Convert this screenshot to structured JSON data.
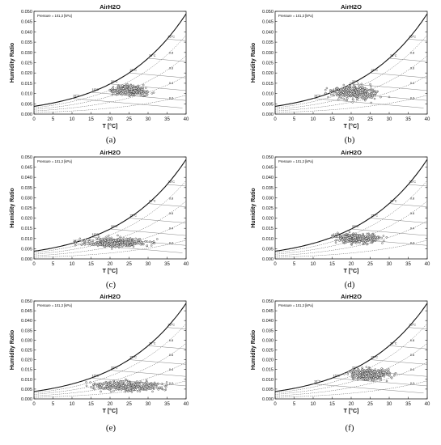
{
  "chart_data": [
    {
      "panel_label": "(a)",
      "type": "scatter",
      "title": "AirH2O",
      "xlabel": "T [°C]",
      "ylabel": "Humidity Ratio",
      "pressure_label": "Pressure = 101,3 [kPa]",
      "xlim": [
        0,
        40
      ],
      "ylim": [
        0,
        0.05
      ],
      "x_ticks": [
        "0",
        "5",
        "10",
        "15",
        "20",
        "25",
        "30",
        "35",
        "40"
      ],
      "y_ticks": [
        "0.000",
        "0.005",
        "0.010",
        "0.015",
        "0.020",
        "0.025",
        "0.030",
        "0.035",
        "0.040",
        "0.045",
        "0.050"
      ],
      "rh_labels": [
        "0.2",
        "0.4",
        "0.6",
        "0.8"
      ],
      "wetbulb_labels": [
        "10°C",
        "15°C",
        "20°C",
        "25°C",
        "30°C",
        "35°C"
      ],
      "cloud": {
        "x_range": [
          18,
          32
        ],
        "w_range": [
          0.008,
          0.015
        ],
        "mean_x": 25,
        "mean_w": 0.0115
      },
      "grid": false
    },
    {
      "panel_label": "(b)",
      "type": "scatter",
      "title": "AirH2O",
      "xlabel": "T [°C]",
      "ylabel": "Humidity Ratio",
      "pressure_label": "Pressure = 101,3 [kPa]",
      "xlim": [
        0,
        40
      ],
      "ylim": [
        0,
        0.05
      ],
      "x_ticks": [
        "0",
        "5",
        "10",
        "15",
        "20",
        "25",
        "30",
        "35",
        "40"
      ],
      "y_ticks": [
        "0.000",
        "0.005",
        "0.010",
        "0.015",
        "0.020",
        "0.025",
        "0.030",
        "0.035",
        "0.040",
        "0.045",
        "0.050"
      ],
      "rh_labels": [
        "0.2",
        "0.4",
        "0.6",
        "0.8"
      ],
      "wetbulb_labels": [
        "10°C",
        "15°C",
        "20°C",
        "25°C",
        "30°C",
        "35°C"
      ],
      "cloud": {
        "x_range": [
          13,
          30
        ],
        "w_range": [
          0.005,
          0.015
        ],
        "mean_x": 21,
        "mean_w": 0.0105
      },
      "grid": false
    },
    {
      "panel_label": "(c)",
      "type": "scatter",
      "title": "AirH2O",
      "xlabel": "T [°C]",
      "ylabel": "Humidity Ratio",
      "pressure_label": "Pressure = 101,3 [kPa]",
      "xlim": [
        0,
        40
      ],
      "ylim": [
        0,
        0.05
      ],
      "x_ticks": [
        "0",
        "5",
        "10",
        "15",
        "20",
        "25",
        "30",
        "35",
        "40"
      ],
      "y_ticks": [
        "0.000",
        "0.005",
        "0.010",
        "0.015",
        "0.020",
        "0.025",
        "0.030",
        "0.035",
        "0.040",
        "0.045",
        "0.050"
      ],
      "rh_labels": [
        "0.2",
        "0.4",
        "0.6",
        "0.8"
      ],
      "wetbulb_labels": [
        "10°C",
        "15°C",
        "20°C",
        "25°C",
        "30°C",
        "35°C"
      ],
      "cloud": {
        "x_range": [
          10,
          35
        ],
        "w_range": [
          0.005,
          0.012
        ],
        "mean_x": 22,
        "mean_w": 0.008
      },
      "grid": false
    },
    {
      "panel_label": "(d)",
      "type": "scatter",
      "title": "AirH2O",
      "xlabel": "T [°C]",
      "ylabel": "Humidity Ratio",
      "pressure_label": "Pressure = 101,3 [kPa]",
      "xlim": [
        0,
        40
      ],
      "ylim": [
        0,
        0.05
      ],
      "x_ticks": [
        "0",
        "5",
        "10",
        "15",
        "20",
        "25",
        "30",
        "35",
        "40"
      ],
      "y_ticks": [
        "0.000",
        "0.005",
        "0.010",
        "0.015",
        "0.020",
        "0.025",
        "0.030",
        "0.035",
        "0.040",
        "0.045",
        "0.050"
      ],
      "rh_labels": [
        "0.2",
        "0.4",
        "0.6",
        "0.8"
      ],
      "wetbulb_labels": [
        "15°C",
        "20°C",
        "25°C",
        "30°C",
        "35°C"
      ],
      "cloud": {
        "x_range": [
          15,
          32
        ],
        "w_range": [
          0.007,
          0.014
        ],
        "mean_x": 22,
        "mean_w": 0.01
      },
      "grid": false
    },
    {
      "panel_label": "(e)",
      "type": "scatter",
      "title": "AirH2O",
      "xlabel": "T [°C]",
      "ylabel": "Humidity Ratio",
      "pressure_label": "Pressure = 101,3 [kPa]",
      "xlim": [
        0,
        40
      ],
      "ylim": [
        0,
        0.05
      ],
      "x_ticks": [
        "0",
        "5",
        "10",
        "15",
        "20",
        "25",
        "30",
        "35",
        "40"
      ],
      "y_ticks": [
        "0.000",
        "0.005",
        "0.010",
        "0.015",
        "0.020",
        "0.025",
        "0.030",
        "0.035",
        "0.040",
        "0.045",
        "0.050"
      ],
      "rh_labels": [
        "0.2",
        "0.4",
        "0.6",
        "0.8"
      ],
      "wetbulb_labels": [
        "15°C",
        "20°C",
        "25°C",
        "30°C",
        "35°C"
      ],
      "cloud": {
        "x_range": [
          12,
          38
        ],
        "w_range": [
          0.003,
          0.011
        ],
        "mean_x": 25,
        "mean_w": 0.0065
      },
      "grid": false
    },
    {
      "panel_label": "(f)",
      "type": "scatter",
      "title": "AirH2O",
      "xlabel": "T [°C]",
      "ylabel": "Humidity Ratio",
      "pressure_label": "Pressure = 101,3 [kPa]",
      "xlim": [
        0,
        40
      ],
      "ylim": [
        0,
        0.05
      ],
      "x_ticks": [
        "0",
        "5",
        "10",
        "15",
        "20",
        "25",
        "30",
        "35",
        "40"
      ],
      "y_ticks": [
        "0.000",
        "0.005",
        "0.010",
        "0.015",
        "0.020",
        "0.025",
        "0.030",
        "0.035",
        "0.040",
        "0.045",
        "0.050"
      ],
      "rh_labels": [
        "0.2",
        "0.4",
        "0.6",
        "0.8"
      ],
      "wetbulb_labels": [
        "10°C",
        "15°C",
        "20°C",
        "25°C",
        "30°C",
        "35°C"
      ],
      "cloud": {
        "x_range": [
          18,
          33
        ],
        "w_range": [
          0.008,
          0.017
        ],
        "mean_x": 25,
        "mean_w": 0.0125
      },
      "grid": false
    }
  ],
  "colors": {
    "axis": "#222222",
    "saturation": "#111111",
    "rh_line": "#555555",
    "wetbulb_line": "#777777",
    "marker": "#333333"
  }
}
